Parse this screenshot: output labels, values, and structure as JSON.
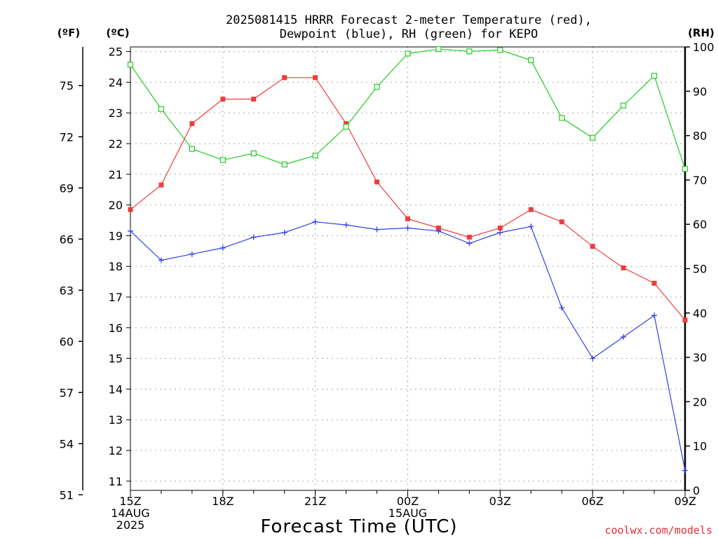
{
  "chart_data": {
    "type": "line",
    "title_line1": "2025081415 HRRR Forecast 2-meter Temperature (red),",
    "title_line2": "Dewpoint (blue), RH (green) for KEPO",
    "xlabel": "Forecast Time (UTC)",
    "credit": "coolwx.com/models",
    "credit_color": "#e0303a",
    "units": {
      "fahrenheit": "(ºF)",
      "celsius": "(ºC)",
      "rh": "(RH)"
    },
    "x_hours": [
      0,
      1,
      2,
      3,
      4,
      5,
      6,
      7,
      8,
      9,
      10,
      11,
      12,
      13,
      14,
      15,
      16,
      17,
      18
    ],
    "x_ticks": [
      {
        "hour": 0,
        "lines": [
          "15Z",
          "14AUG",
          "2025"
        ]
      },
      {
        "hour": 3,
        "lines": [
          "18Z"
        ]
      },
      {
        "hour": 6,
        "lines": [
          "21Z"
        ]
      },
      {
        "hour": 9,
        "lines": [
          "00Z",
          "15AUG"
        ]
      },
      {
        "hour": 12,
        "lines": [
          "03Z"
        ]
      },
      {
        "hour": 15,
        "lines": [
          "06Z"
        ]
      },
      {
        "hour": 18,
        "lines": [
          "09Z"
        ]
      }
    ],
    "celsius_axis": {
      "min": 10.7,
      "max": 25.15,
      "ticks": [
        11,
        12,
        13,
        14,
        15,
        16,
        17,
        18,
        19,
        20,
        21,
        22,
        23,
        24,
        25
      ]
    },
    "fahrenheit_ticks": [
      51,
      54,
      57,
      60,
      63,
      66,
      69,
      72,
      75
    ],
    "rh_axis": {
      "min": 0,
      "max": 100,
      "ticks": [
        0,
        10,
        20,
        30,
        40,
        50,
        60,
        70,
        80,
        90,
        100
      ]
    },
    "grid": true,
    "series": [
      {
        "name": "Temperature (red)",
        "color": "#f03c3c",
        "marker": "filled-square",
        "axis": "celsius",
        "values": [
          19.85,
          20.65,
          22.65,
          23.45,
          23.45,
          24.15,
          24.15,
          22.65,
          20.75,
          19.55,
          19.25,
          18.95,
          19.25,
          19.85,
          19.45,
          18.65,
          17.95,
          17.45,
          16.25
        ]
      },
      {
        "name": "Dewpoint (blue)",
        "color": "#3040e8",
        "marker": "plus",
        "axis": "celsius",
        "values": [
          19.15,
          18.2,
          18.4,
          18.6,
          18.95,
          19.1,
          19.45,
          19.35,
          19.2,
          19.25,
          19.15,
          18.75,
          19.1,
          19.3,
          16.65,
          15.0,
          15.7,
          16.4,
          11.35
        ]
      },
      {
        "name": "RH (green)",
        "color": "#22cc22",
        "marker": "open-square",
        "axis": "rh",
        "values": [
          96,
          86,
          77,
          74.5,
          76,
          73.5,
          75.5,
          82,
          91,
          98.5,
          99.5,
          99,
          99.3,
          97,
          84,
          79.5,
          86.8,
          93.5,
          72.5
        ]
      }
    ]
  }
}
